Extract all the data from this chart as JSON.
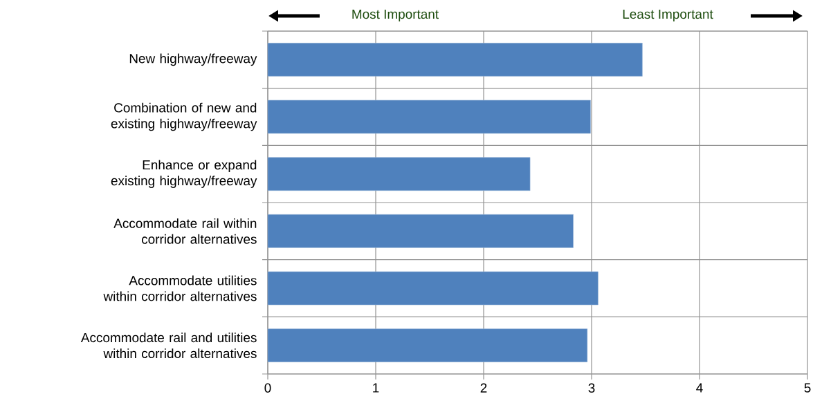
{
  "chart_data": {
    "type": "bar",
    "orientation": "horizontal",
    "categories": [
      "New highway/freeway",
      "Combination of new and existing highway/freeway",
      "Enhance or expand existing highway/freeway",
      "Accommodate rail within corridor alternatives",
      "Accommodate utilities within corridor alternatives",
      "Accommodate rail and utilities within corridor alternatives"
    ],
    "values": [
      3.47,
      2.99,
      2.43,
      2.83,
      3.06,
      2.96
    ],
    "color": "#4f81bd",
    "xlim": [
      0,
      5
    ],
    "xticks": [
      0,
      1,
      2,
      3,
      4,
      5
    ],
    "grid": true,
    "annotations": [
      "Most Important",
      "Least Important"
    ]
  }
}
